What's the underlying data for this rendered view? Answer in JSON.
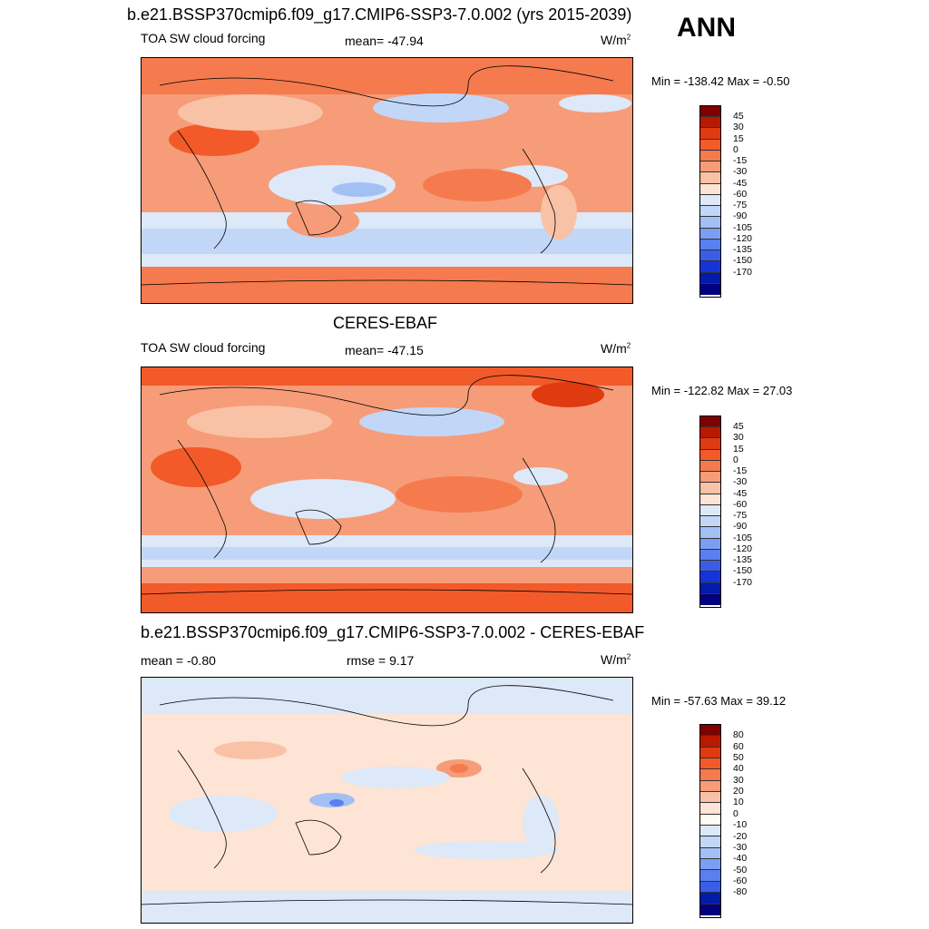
{
  "season": "ANN",
  "panels": [
    {
      "title": "b.e21.BSSP370cmip6.f09_g17.CMIP6-SSP3-7.0.002 (yrs 2015-2039)",
      "left_label": "TOA SW cloud forcing",
      "center_label": "mean= -47.94",
      "units": "W/m",
      "units_sup": "2",
      "minmax": "Min = -138.42 Max =  -0.50",
      "colorbar": {
        "labels": [
          "45",
          "30",
          "15",
          "0",
          "-15",
          "-30",
          "-45",
          "-60",
          "-75",
          "-90",
          "-105",
          "-120",
          "-135",
          "-150",
          "-170"
        ],
        "colors": [
          "#800000",
          "#b81a00",
          "#e03a10",
          "#f25a2a",
          "#f57a4e",
          "#f69c78",
          "#f9c2a6",
          "#fde4d4",
          "#dde8f8",
          "#c2d7f7",
          "#a3c0f5",
          "#7c9ef2",
          "#5a7fee",
          "#3a5de8",
          "#1434d8",
          "#001ca8",
          "#000080"
        ]
      }
    },
    {
      "title": "CERES-EBAF",
      "left_label": "TOA SW cloud forcing",
      "center_label": "mean= -47.15",
      "units": "W/m",
      "units_sup": "2",
      "minmax": "Min = -122.82 Max =  27.03",
      "colorbar": {
        "labels": [
          "45",
          "30",
          "15",
          "0",
          "-15",
          "-30",
          "-45",
          "-60",
          "-75",
          "-90",
          "-105",
          "-120",
          "-135",
          "-150",
          "-170"
        ],
        "colors": [
          "#800000",
          "#b81a00",
          "#e03a10",
          "#f25a2a",
          "#f57a4e",
          "#f69c78",
          "#f9c2a6",
          "#fde4d4",
          "#dde8f8",
          "#c2d7f7",
          "#a3c0f5",
          "#7c9ef2",
          "#5a7fee",
          "#3a5de8",
          "#1434d8",
          "#001ca8",
          "#000080"
        ]
      }
    },
    {
      "title": "b.e21.BSSP370cmip6.f09_g17.CMIP6-SSP3-7.0.002 - CERES-EBAF",
      "left_label": "mean =  -0.80",
      "center_label": "rmse =   9.17",
      "units": "W/m",
      "units_sup": "2",
      "minmax": "Min = -57.63 Max =  39.12",
      "colorbar": {
        "labels": [
          "80",
          "60",
          "50",
          "40",
          "30",
          "20",
          "10",
          "0",
          "-10",
          "-20",
          "-30",
          "-40",
          "-50",
          "-60",
          "-80"
        ],
        "colors": [
          "#800000",
          "#b81a00",
          "#e03a10",
          "#f25a2a",
          "#f57a4e",
          "#f69c78",
          "#f9c2a6",
          "#fde4d4",
          "#fffaf6",
          "#dde8f8",
          "#c2d7f7",
          "#a3c0f5",
          "#7c9ef2",
          "#5a7fee",
          "#3a5de8",
          "#001ca8",
          "#000080"
        ]
      }
    }
  ]
}
